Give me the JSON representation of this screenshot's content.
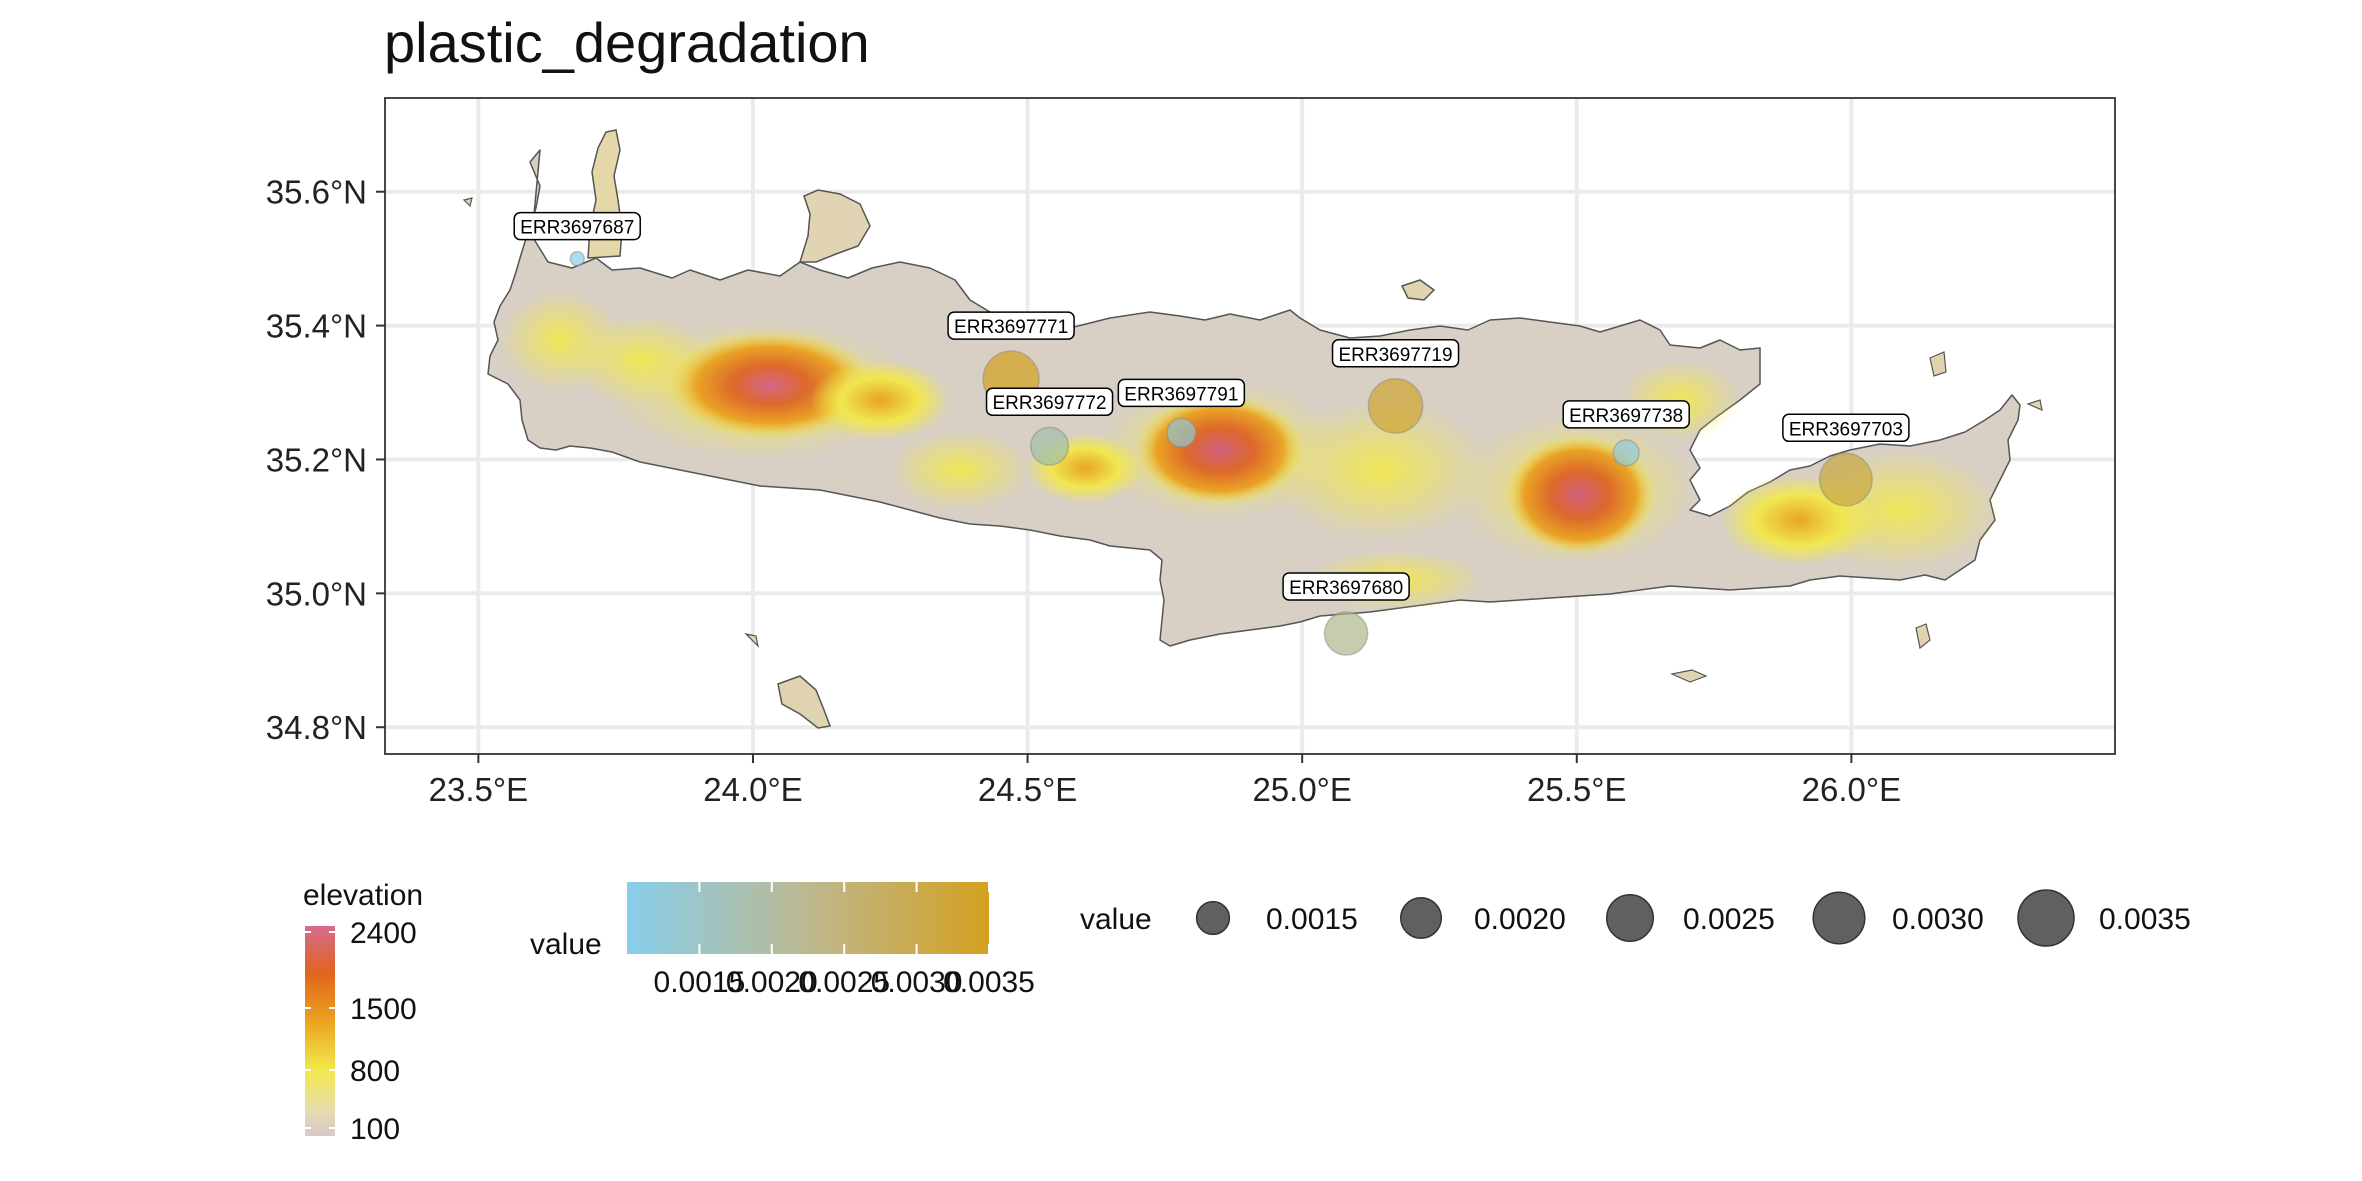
{
  "title": "plastic_degradation",
  "map": {
    "x_ticks": [
      {
        "value": 23.5,
        "label": "23.5°E"
      },
      {
        "value": 24.0,
        "label": "24.0°E"
      },
      {
        "value": 24.5,
        "label": "24.5°E"
      },
      {
        "value": 25.0,
        "label": "25.0°E"
      },
      {
        "value": 25.5,
        "label": "25.5°E"
      },
      {
        "value": 26.0,
        "label": "26.0°E"
      }
    ],
    "y_ticks": [
      {
        "value": 34.8,
        "label": "34.8°N"
      },
      {
        "value": 35.0,
        "label": "35.0°N"
      },
      {
        "value": 35.2,
        "label": "35.2°N"
      },
      {
        "value": 35.4,
        "label": "35.4°N"
      },
      {
        "value": 35.6,
        "label": "35.6°N"
      }
    ],
    "xlim": [
      23.33,
      26.48
    ],
    "ylim": [
      34.76,
      35.74
    ],
    "sites": [
      {
        "id": "ERR3697687",
        "lon": 23.68,
        "lat": 35.5,
        "value": 0.001
      },
      {
        "id": "ERR3697771",
        "lon": 24.47,
        "lat": 35.32,
        "value": 0.0035
      },
      {
        "id": "ERR3697772",
        "lon": 24.54,
        "lat": 35.22,
        "value": 0.0018
      },
      {
        "id": "ERR3697791",
        "lon": 24.78,
        "lat": 35.24,
        "value": 0.0013
      },
      {
        "id": "ERR3697719",
        "lon": 25.17,
        "lat": 35.28,
        "value": 0.0033
      },
      {
        "id": "ERR3697738",
        "lon": 25.59,
        "lat": 35.21,
        "value": 0.0012
      },
      {
        "id": "ERR3697703",
        "lon": 25.99,
        "lat": 35.17,
        "value": 0.0031
      },
      {
        "id": "ERR3697680",
        "lon": 25.08,
        "lat": 34.94,
        "value": 0.0022
      }
    ]
  },
  "legend": {
    "elevation": {
      "title": "elevation",
      "labels": [
        "2400",
        "1500",
        "800",
        "100"
      ],
      "colors": [
        "#d6c8c8",
        "#f2e84a",
        "#eaa21e",
        "#e0641e",
        "#d66a8e"
      ]
    },
    "value_color": {
      "title": "value",
      "tick_labels": [
        "0.0015",
        "0.0020",
        "0.0025",
        "0.0030",
        "0.0035"
      ],
      "tick_values": [
        0.0015,
        0.002,
        0.0025,
        0.003,
        0.0035
      ],
      "range": [
        0.001,
        0.0035
      ],
      "low_color": "#87ceeb",
      "high_color": "#d4a020"
    },
    "value_size": {
      "title": "value",
      "labels": [
        "0.0015",
        "0.0020",
        "0.0025",
        "0.0030",
        "0.0035"
      ],
      "values": [
        0.0015,
        0.002,
        0.0025,
        0.003,
        0.0035
      ]
    }
  }
}
